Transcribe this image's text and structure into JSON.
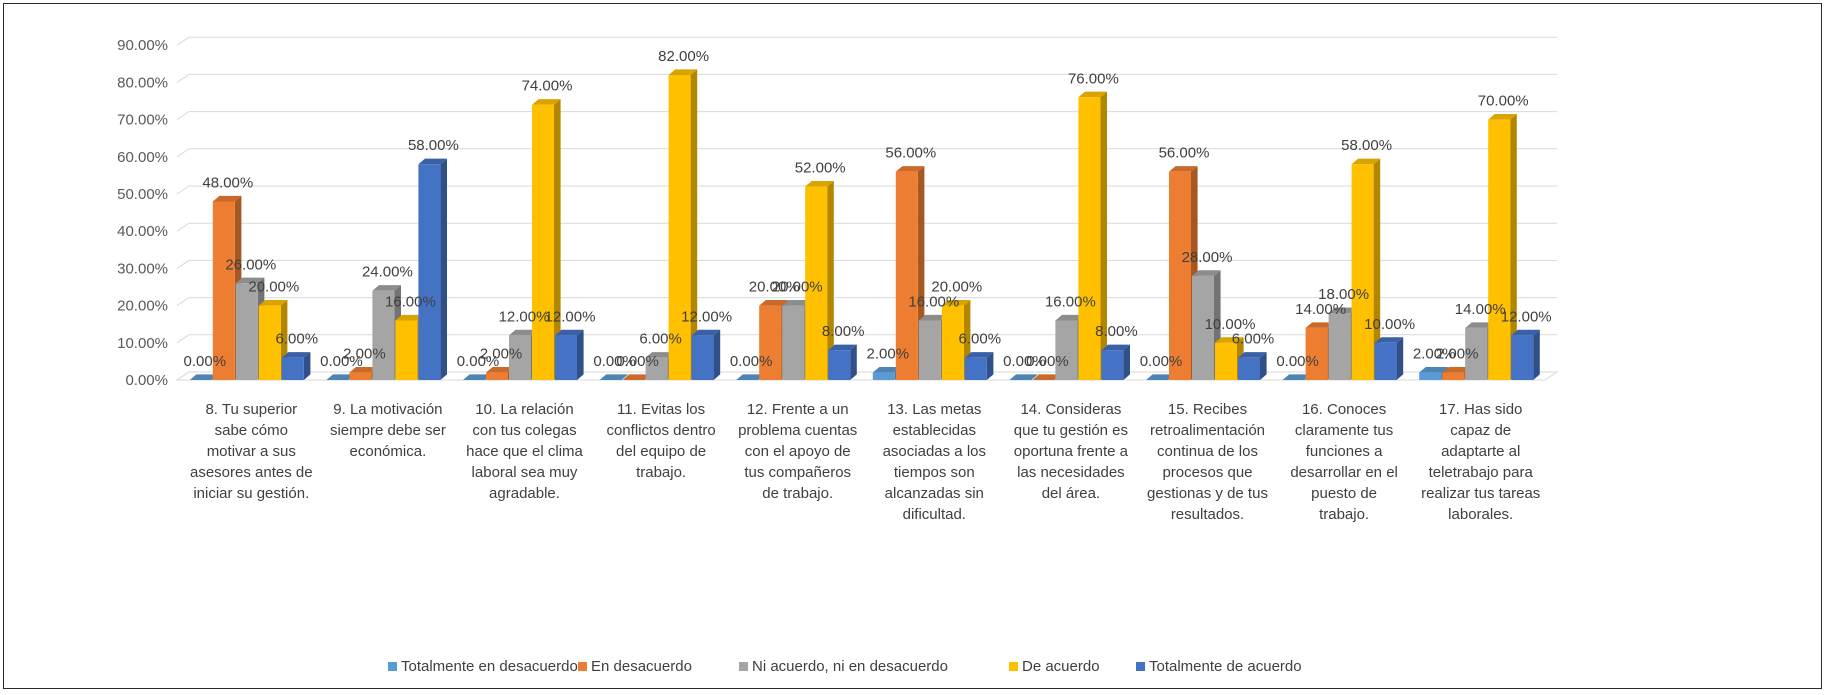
{
  "chart_data": {
    "type": "bar",
    "style": "3d-clustered-column",
    "title": "",
    "xlabel": "",
    "ylabel": "",
    "ylim": [
      0,
      90
    ],
    "yticks": [
      "0.00%",
      "10.00%",
      "20.00%",
      "30.00%",
      "40.00%",
      "50.00%",
      "60.00%",
      "70.00%",
      "80.00%",
      "90.00%"
    ],
    "grid": true,
    "legend_position": "bottom",
    "categories": [
      [
        "8. Tu superior",
        "sabe cómo",
        "motivar a sus",
        "asesores antes de",
        "iniciar su gestión."
      ],
      [
        "9. La motivación",
        "siempre debe ser",
        "económica."
      ],
      [
        "10. La relación",
        "con tus colegas",
        "hace que el clima",
        "laboral sea muy",
        "agradable."
      ],
      [
        "11. Evitas los",
        "conflictos dentro",
        "del equipo de",
        "trabajo."
      ],
      [
        "12. Frente a un",
        "problema cuentas",
        "con el apoyo de",
        "tus compañeros",
        "de trabajo."
      ],
      [
        "13. Las metas",
        "establecidas",
        "asociadas a los",
        "tiempos son",
        "alcanzadas sin",
        "dificultad."
      ],
      [
        "14. Consideras",
        "que tu gestión es",
        "oportuna frente a",
        "las necesidades",
        "del área."
      ],
      [
        "15. Recibes",
        "retroalimentación",
        "continua de los",
        "procesos que",
        "gestionas y de tus",
        "resultados."
      ],
      [
        "16. Conoces",
        "claramente tus",
        "funciones a",
        "desarrollar en el",
        "puesto de",
        "trabajo."
      ],
      [
        "17. Has sido",
        "capaz de",
        "adaptarte al",
        "teletrabajo para",
        "realizar tus tareas",
        "laborales."
      ]
    ],
    "series": [
      {
        "name": "Totalmente en desacuerdo",
        "color": "#5B9BD5",
        "values": [
          0,
          0,
          0,
          0,
          0,
          2,
          0,
          0,
          0,
          2
        ],
        "labels": [
          "0.00%",
          "0.00%",
          "0.00%",
          "0.00%",
          "0.00%",
          "2.00%",
          "0.00%",
          "0.00%",
          "0.00%",
          "2.00%"
        ]
      },
      {
        "name": "En desacuerdo",
        "color": "#ED7D31",
        "values": [
          48,
          2,
          2,
          0,
          20,
          56,
          0,
          56,
          14,
          2
        ],
        "labels": [
          "48.00%",
          "2.00%",
          "2.00%",
          "0.00%",
          "20.00%",
          "56.00%",
          "0.00%",
          "56.00%",
          "14.00%",
          "2.00%"
        ]
      },
      {
        "name": "Ni acuerdo, ni en desacuerdo",
        "color": "#A5A5A5",
        "values": [
          26,
          24,
          12,
          6,
          20,
          16,
          16,
          28,
          18,
          14
        ],
        "labels": [
          "26.00%",
          "24.00%",
          "12.00%",
          "6.00%",
          "20.00%",
          "16.00%",
          "16.00%",
          "28.00%",
          "18.00%",
          "14.00%"
        ]
      },
      {
        "name": "De acuerdo",
        "color": "#FFC000",
        "values": [
          20,
          16,
          74,
          82,
          52,
          20,
          76,
          10,
          58,
          70
        ],
        "labels": [
          "20.00%",
          "16.00%",
          "74.00%",
          "82.00%",
          "52.00%",
          "20.00%",
          "76.00%",
          "10.00%",
          "58.00%",
          "70.00%"
        ]
      },
      {
        "name": "Totalmente de acuerdo",
        "color": "#4472C4",
        "values": [
          6,
          58,
          12,
          12,
          8,
          6,
          8,
          6,
          10,
          12
        ],
        "labels": [
          "6.00%",
          "58.00%",
          "12.00%",
          "12.00%",
          "8.00%",
          "6.00%",
          "8.00%",
          "6.00%",
          "10.00%",
          "12.00%"
        ]
      }
    ]
  }
}
